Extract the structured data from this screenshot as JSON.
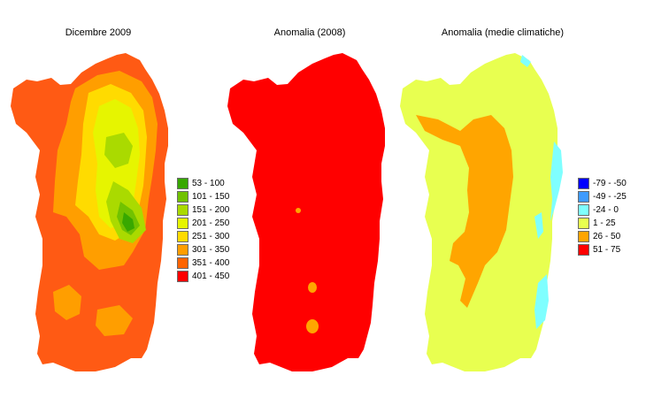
{
  "maps": [
    {
      "title": "Dicembre 2009",
      "base_color": "#ff5a14",
      "legend": [
        {
          "label": "53 - 100",
          "color": "#38a800"
        },
        {
          "label": "101 - 150",
          "color": "#71c200"
        },
        {
          "label": "151 - 200",
          "color": "#aada00"
        },
        {
          "label": "201 - 250",
          "color": "#e6f500"
        },
        {
          "label": "251 - 300",
          "color": "#ffdb00"
        },
        {
          "label": "301 - 350",
          "color": "#ff9e00"
        },
        {
          "label": "351 - 400",
          "color": "#ff6400"
        },
        {
          "label": "401 - 450",
          "color": "#ff0000"
        }
      ]
    },
    {
      "title": "Anomalia (2008)",
      "base_color": "#ff0000",
      "legend": []
    },
    {
      "title": "Anomalia (medie climatiche)",
      "base_color": "#e8ff50",
      "legend": [
        {
          "label": "-79 - -50",
          "color": "#0000ff"
        },
        {
          "label": "-49 - -25",
          "color": "#3f9bff"
        },
        {
          "label": "-24 - 0",
          "color": "#7fffff"
        },
        {
          "label": "1 - 25",
          "color": "#e8ff50"
        },
        {
          "label": "26 - 50",
          "color": "#ffa500"
        },
        {
          "label": "51 - 75",
          "color": "#ff0000"
        }
      ]
    }
  ]
}
